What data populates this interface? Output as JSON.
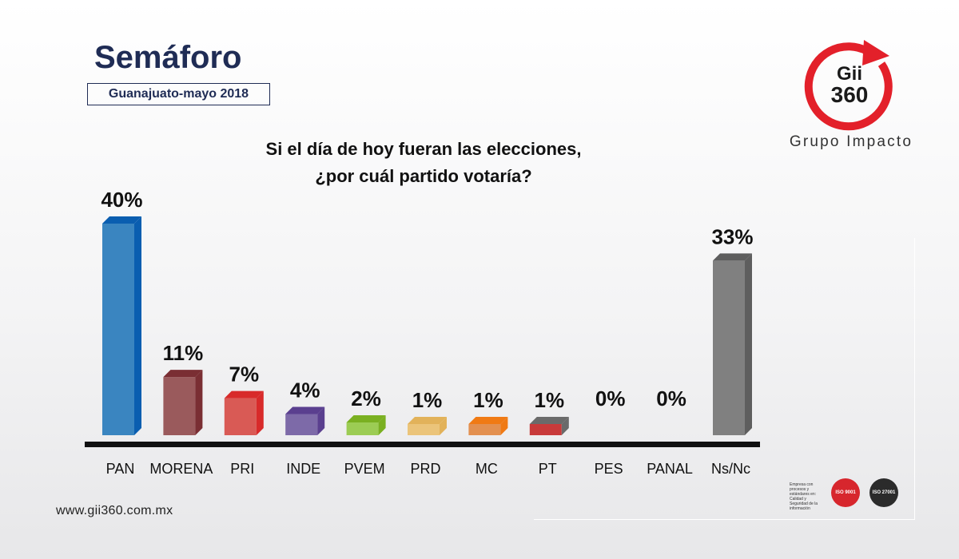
{
  "header": {
    "title": "Semáforo",
    "subtitle": "Guanajuato-mayo 2018",
    "question_line1": "Si el día de hoy fueran las elecciones,",
    "question_line2": "¿por cuál partido votaría?"
  },
  "brand": {
    "logo_line1": "Gii",
    "logo_line2": "360",
    "tagline": "Grupo Impacto",
    "website": "www.gii360.com.mx",
    "accent_color": "#e3202a"
  },
  "certifications": {
    "caption": "Empresa con procesos y estándares en: Calidad y Seguridad de la información",
    "badges": [
      {
        "label": "ISO 9001",
        "color": "#d7262d"
      },
      {
        "label": "ISO 27001",
        "color": "#2b2b2b"
      }
    ]
  },
  "chart_data": {
    "type": "bar",
    "title": "Si el día de hoy fueran las elecciones, ¿por cuál partido votaría?",
    "categories": [
      "PAN",
      "MORENA",
      "PRI",
      "INDE",
      "PVEM",
      "PRD",
      "MC",
      "PT",
      "PES",
      "PANAL",
      "Ns/Nc"
    ],
    "values": [
      40,
      11,
      7,
      4,
      2,
      1,
      1,
      1,
      0,
      0,
      33
    ],
    "labels": [
      "40%",
      "11%",
      "7%",
      "4%",
      "2%",
      "1%",
      "1%",
      "1%",
      "0%",
      "0%",
      "33%"
    ],
    "colors": [
      "#3a85c0",
      "#9a5a5c",
      "#d95a55",
      "#7d6aa8",
      "#9ccc54",
      "#ebc47a",
      "#e39050",
      "#c83a3a",
      null,
      null,
      "#808080"
    ],
    "side_colors": [
      "#0a5eb0",
      "#7a2e33",
      "#d82a2a",
      "#5a3f8f",
      "#7ab021",
      "#e2b25a",
      "#f07a14",
      "#6a6a6a",
      null,
      null,
      "#5e5e5e"
    ],
    "ylim": [
      0,
      40
    ],
    "unit": "%",
    "grid": false,
    "legend": "none"
  }
}
